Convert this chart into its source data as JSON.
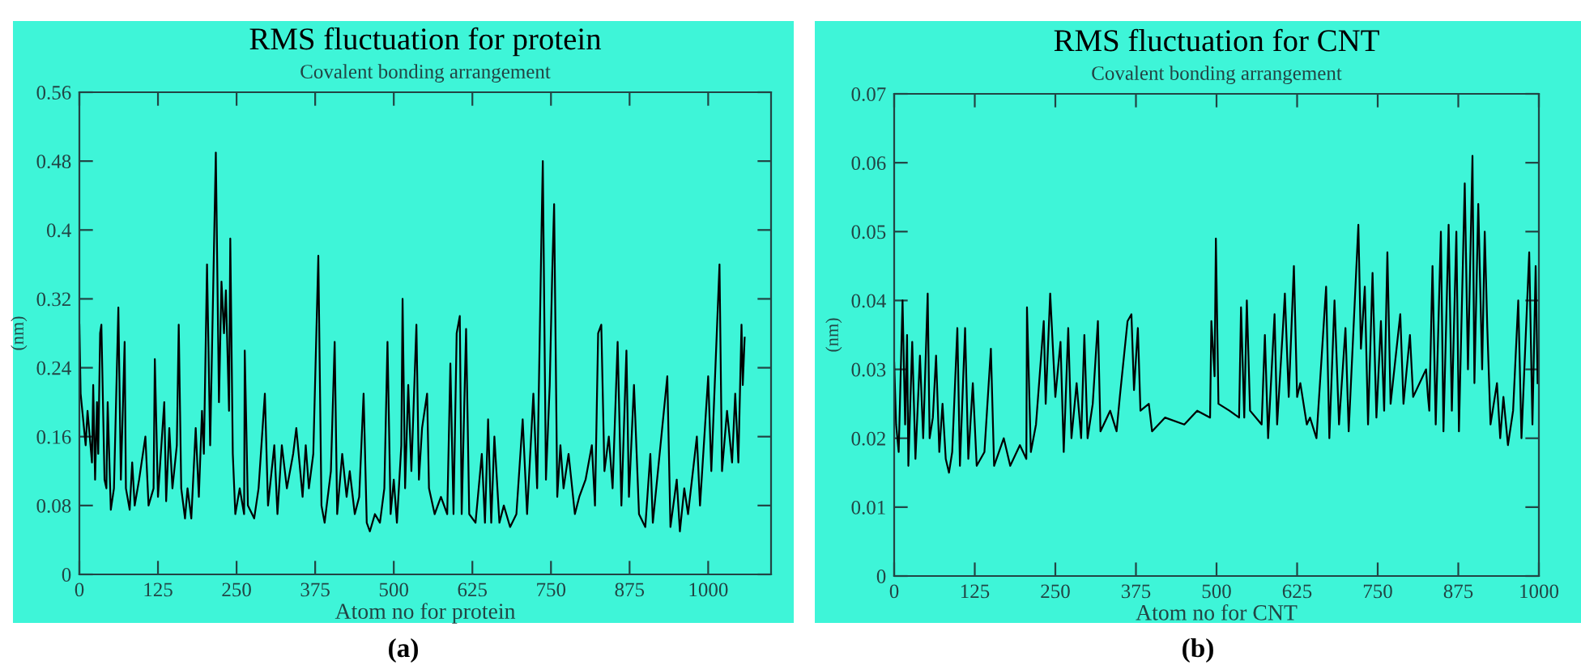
{
  "chart_data": [
    {
      "type": "line",
      "title": "RMS fluctuation for protein",
      "subtitle": "Covalent bonding arrangement",
      "xlabel": "Atom no for protein",
      "ylabel": "(nm)",
      "annotations": [
        "(a)"
      ],
      "grid": false,
      "xlim": [
        0,
        1100
      ],
      "xticks": [
        0,
        125,
        250,
        375,
        500,
        625,
        750,
        875,
        1000
      ],
      "ylim": [
        0,
        0.56
      ],
      "yticks": [
        0,
        0.08,
        0.16,
        0.24,
        0.32,
        0.4,
        0.48,
        0.56
      ],
      "series": [
        {
          "color": "#000000",
          "x": [
            0,
            2,
            10,
            13,
            20,
            22,
            25,
            28,
            30,
            33,
            35,
            40,
            43,
            45,
            50,
            55,
            62,
            66,
            72,
            74,
            80,
            84,
            88,
            95,
            105,
            110,
            118,
            120,
            125,
            135,
            138,
            143,
            148,
            155,
            158,
            162,
            168,
            172,
            178,
            185,
            190,
            195,
            198,
            203,
            208,
            217,
            222,
            226,
            230,
            233,
            238,
            240,
            244,
            248,
            255,
            262,
            263,
            268,
            278,
            285,
            295,
            300,
            310,
            315,
            322,
            330,
            340,
            345,
            355,
            360,
            365,
            372,
            380,
            385,
            390,
            400,
            406,
            410,
            418,
            425,
            430,
            438,
            445,
            452,
            457,
            462,
            470,
            478,
            485,
            490,
            495,
            500,
            505,
            512,
            514,
            518,
            523,
            528,
            536,
            540,
            545,
            553,
            556,
            565,
            575,
            585,
            590,
            595,
            600,
            605,
            608,
            615,
            620,
            630,
            640,
            645,
            650,
            655,
            660,
            668,
            675,
            685,
            695,
            705,
            712,
            722,
            728,
            735,
            737,
            742,
            748,
            752,
            755,
            760,
            765,
            770,
            778,
            788,
            795,
            805,
            815,
            820,
            825,
            830,
            835,
            842,
            848,
            856,
            862,
            870,
            874,
            882,
            890,
            900,
            908,
            912,
            935,
            940,
            950,
            955,
            962,
            968,
            982,
            987,
            1000,
            1005,
            1018,
            1022,
            1030,
            1038,
            1043,
            1048,
            1053,
            1055,
            1058
          ],
          "values": [
            0.29,
            0.21,
            0.15,
            0.19,
            0.13,
            0.22,
            0.11,
            0.2,
            0.14,
            0.28,
            0.29,
            0.11,
            0.1,
            0.2,
            0.075,
            0.1,
            0.31,
            0.11,
            0.27,
            0.1,
            0.075,
            0.13,
            0.08,
            0.11,
            0.16,
            0.08,
            0.1,
            0.25,
            0.09,
            0.2,
            0.085,
            0.17,
            0.1,
            0.15,
            0.29,
            0.1,
            0.065,
            0.1,
            0.065,
            0.17,
            0.09,
            0.19,
            0.14,
            0.36,
            0.15,
            0.49,
            0.2,
            0.34,
            0.28,
            0.33,
            0.19,
            0.39,
            0.14,
            0.07,
            0.1,
            0.07,
            0.26,
            0.08,
            0.065,
            0.1,
            0.21,
            0.08,
            0.15,
            0.07,
            0.15,
            0.1,
            0.14,
            0.17,
            0.09,
            0.15,
            0.1,
            0.14,
            0.37,
            0.08,
            0.06,
            0.12,
            0.27,
            0.07,
            0.14,
            0.09,
            0.12,
            0.07,
            0.09,
            0.21,
            0.06,
            0.05,
            0.07,
            0.06,
            0.1,
            0.27,
            0.07,
            0.11,
            0.06,
            0.15,
            0.32,
            0.1,
            0.22,
            0.12,
            0.29,
            0.11,
            0.17,
            0.21,
            0.1,
            0.07,
            0.09,
            0.07,
            0.245,
            0.07,
            0.28,
            0.3,
            0.07,
            0.285,
            0.07,
            0.06,
            0.14,
            0.06,
            0.18,
            0.06,
            0.16,
            0.06,
            0.08,
            0.055,
            0.07,
            0.18,
            0.07,
            0.21,
            0.1,
            0.4,
            0.48,
            0.11,
            0.22,
            0.35,
            0.43,
            0.09,
            0.15,
            0.1,
            0.14,
            0.07,
            0.09,
            0.11,
            0.15,
            0.08,
            0.28,
            0.29,
            0.12,
            0.16,
            0.1,
            0.27,
            0.08,
            0.26,
            0.09,
            0.22,
            0.07,
            0.055,
            0.14,
            0.06,
            0.23,
            0.055,
            0.11,
            0.05,
            0.1,
            0.07,
            0.16,
            0.08,
            0.23,
            0.12,
            0.36,
            0.12,
            0.19,
            0.13,
            0.21,
            0.13,
            0.29,
            0.22,
            0.275
          ]
        }
      ]
    },
    {
      "type": "line",
      "title": "RMS fluctuation for CNT",
      "subtitle": "Covalent bonding arrangement",
      "xlabel": "Atom no for CNT",
      "ylabel": "(nm)",
      "annotations": [
        "(b)"
      ],
      "grid": false,
      "xlim": [
        0,
        1000
      ],
      "xticks": [
        0,
        125,
        250,
        375,
        500,
        625,
        750,
        875,
        1000
      ],
      "ylim": [
        0,
        0.07
      ],
      "yticks": [
        0,
        0.01,
        0.02,
        0.03,
        0.04,
        0.05,
        0.06,
        0.07
      ],
      "series": [
        {
          "color": "#000000",
          "x": [
            0,
            3,
            7,
            13,
            17,
            20,
            22,
            28,
            33,
            40,
            45,
            52,
            55,
            60,
            65,
            70,
            75,
            80,
            85,
            90,
            98,
            102,
            110,
            115,
            122,
            128,
            140,
            150,
            155,
            170,
            180,
            195,
            205,
            206,
            212,
            220,
            232,
            235,
            242,
            250,
            258,
            263,
            270,
            275,
            283,
            290,
            295,
            300,
            308,
            316,
            320,
            335,
            345,
            350,
            362,
            368,
            372,
            378,
            382,
            395,
            400,
            420,
            450,
            470,
            490,
            492,
            497,
            499,
            503,
            520,
            535,
            538,
            543,
            547,
            552,
            570,
            575,
            580,
            590,
            594,
            603,
            606,
            612,
            620,
            625,
            630,
            640,
            645,
            655,
            670,
            675,
            683,
            690,
            700,
            705,
            720,
            724,
            730,
            735,
            742,
            748,
            755,
            760,
            765,
            770,
            785,
            790,
            800,
            805,
            825,
            828,
            830,
            835,
            840,
            848,
            852,
            860,
            865,
            872,
            876,
            885,
            890,
            897,
            900,
            906,
            912,
            916,
            920,
            925,
            935,
            940,
            945,
            952,
            960,
            968,
            973,
            985,
            990,
            995,
            998
          ],
          "values": [
            0.031,
            0.022,
            0.018,
            0.04,
            0.022,
            0.035,
            0.016,
            0.034,
            0.017,
            0.032,
            0.02,
            0.041,
            0.02,
            0.023,
            0.032,
            0.018,
            0.025,
            0.017,
            0.015,
            0.018,
            0.036,
            0.016,
            0.036,
            0.017,
            0.028,
            0.016,
            0.018,
            0.033,
            0.016,
            0.02,
            0.016,
            0.019,
            0.017,
            0.039,
            0.018,
            0.022,
            0.037,
            0.025,
            0.041,
            0.026,
            0.034,
            0.018,
            0.036,
            0.02,
            0.028,
            0.02,
            0.035,
            0.02,
            0.025,
            0.037,
            0.021,
            0.024,
            0.021,
            0.026,
            0.037,
            0.038,
            0.027,
            0.036,
            0.024,
            0.025,
            0.021,
            0.023,
            0.022,
            0.024,
            0.023,
            0.037,
            0.029,
            0.049,
            0.025,
            0.024,
            0.023,
            0.039,
            0.023,
            0.04,
            0.024,
            0.022,
            0.035,
            0.02,
            0.038,
            0.022,
            0.036,
            0.041,
            0.026,
            0.045,
            0.026,
            0.028,
            0.022,
            0.023,
            0.02,
            0.042,
            0.02,
            0.04,
            0.022,
            0.036,
            0.021,
            0.051,
            0.033,
            0.042,
            0.022,
            0.044,
            0.023,
            0.037,
            0.024,
            0.047,
            0.025,
            0.038,
            0.025,
            0.035,
            0.026,
            0.03,
            0.026,
            0.024,
            0.045,
            0.022,
            0.05,
            0.021,
            0.051,
            0.024,
            0.05,
            0.021,
            0.057,
            0.03,
            0.061,
            0.028,
            0.054,
            0.03,
            0.05,
            0.036,
            0.022,
            0.028,
            0.02,
            0.026,
            0.019,
            0.024,
            0.04,
            0.02,
            0.047,
            0.022,
            0.045,
            0.028
          ]
        }
      ]
    }
  ]
}
